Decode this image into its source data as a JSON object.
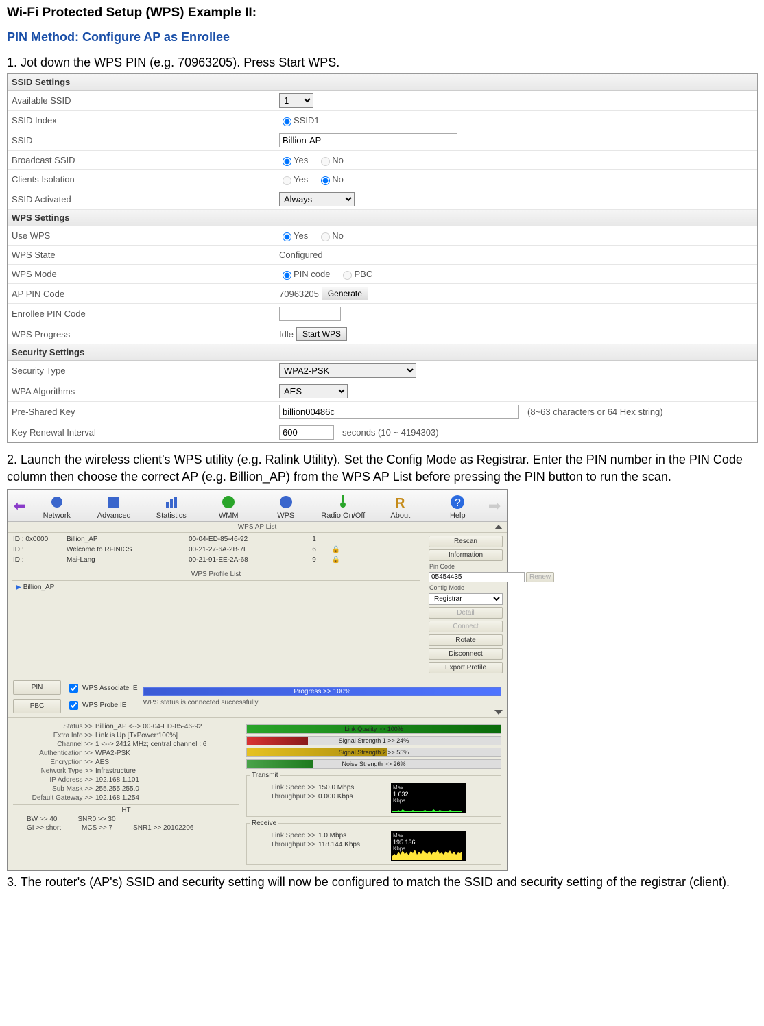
{
  "doc": {
    "title": "Wi-Fi Protected Setup (WPS) Example II:",
    "subtitle": "PIN Method: Configure AP as Enrollee",
    "step1": "1.  Jot down the WPS PIN (e.g. 70963205). Press Start WPS.",
    "step2": "2. Launch the wireless client's WPS utility (e.g. Ralink Utility). Set the Config Mode as Registrar. Enter the PIN number in the PIN Code column then choose the correct AP (e.g. Billion_AP) from the WPS AP List before pressing the PIN button to run the scan.",
    "step3": "3. The router's (AP's) SSID and security setting will now be configured to match the SSID and security setting of the registrar (client)."
  },
  "router": {
    "sec1": "SSID Settings",
    "rows1": {
      "available_ssid": {
        "label": "Available SSID",
        "value": "1"
      },
      "ssid_index": {
        "label": "SSID Index",
        "value": "SSID1"
      },
      "ssid": {
        "label": "SSID",
        "value": "Billion-AP"
      },
      "broadcast": {
        "label": "Broadcast SSID",
        "yes": "Yes",
        "no": "No",
        "sel": "yes"
      },
      "isolation": {
        "label": "Clients Isolation",
        "yes": "Yes",
        "no": "No",
        "sel": "no"
      },
      "activated": {
        "label": "SSID Activated",
        "value": "Always"
      }
    },
    "sec2": "WPS Settings",
    "rows2": {
      "use_wps": {
        "label": "Use WPS",
        "yes": "Yes",
        "no": "No",
        "sel": "yes"
      },
      "state": {
        "label": "WPS State",
        "value": "Configured"
      },
      "mode": {
        "label": "WPS Mode",
        "a": "PIN code",
        "b": "PBC",
        "sel": "a"
      },
      "ap_pin": {
        "label": "AP PIN Code",
        "value": "70963205",
        "btn": "Generate"
      },
      "enrollee_pin": {
        "label": "Enrollee PIN Code",
        "value": ""
      },
      "progress": {
        "label": "WPS Progress",
        "value": "Idle",
        "btn": "Start WPS"
      }
    },
    "sec3": "Security Settings",
    "rows3": {
      "sec_type": {
        "label": "Security Type",
        "value": "WPA2-PSK"
      },
      "alg": {
        "label": "WPA Algorithms",
        "value": "AES"
      },
      "psk": {
        "label": "Pre-Shared Key",
        "value": "billion00486c",
        "hint": "(8~63 characters or 64 Hex string)"
      },
      "renew": {
        "label": "Key Renewal Interval",
        "value": "600",
        "hint": "seconds   (10 ~ 4194303)"
      }
    }
  },
  "ralink": {
    "toolbar": [
      "Network",
      "Advanced",
      "Statistics",
      "WMM",
      "WPS",
      "Radio On/Off",
      "About",
      "Help"
    ],
    "list_title": "WPS AP List",
    "ap_list": [
      {
        "id": "ID : 0x0000",
        "ssid": "Billion_AP",
        "bssid": "00-04-ED-85-46-92",
        "ch": "1",
        "lock": ""
      },
      {
        "id": "ID :",
        "ssid": "Welcome to RFINICS",
        "bssid": "00-21-27-6A-2B-7E",
        "ch": "6",
        "lock": "🔒"
      },
      {
        "id": "ID :",
        "ssid": "Mai-Lang",
        "bssid": "00-21-91-EE-2A-68",
        "ch": "9",
        "lock": "🔒"
      }
    ],
    "profile_title": "WPS Profile List",
    "profile_sel": "Billion_AP",
    "side": {
      "rescan": "Rescan",
      "info": "Information",
      "pin_label": "Pin Code",
      "pin_value": "05454435",
      "mode_label": "Config Mode",
      "mode_value": "Registrar",
      "detail": "Detail",
      "connect": "Connect",
      "rotate": "Rotate",
      "disconnect": "Disconnect",
      "export": "Export Profile"
    },
    "mid": {
      "pin": "PIN",
      "pbc": "PBC",
      "assoc": "WPS Associate IE",
      "probe": "WPS Probe IE",
      "progress": "Progress >> 100%",
      "status": "WPS status is connected successfully"
    },
    "info": {
      "status_k": "Status >>",
      "status_v": "Billion_AP  <--> 00-04-ED-85-46-92",
      "extra_k": "Extra Info >>",
      "extra_v": "Link is Up [TxPower:100%]",
      "chan_k": "Channel >>",
      "chan_v": "1 <--> 2412 MHz; central channel : 6",
      "auth_k": "Authentication >>",
      "auth_v": "WPA2-PSK",
      "enc_k": "Encryption >>",
      "enc_v": "AES",
      "net_k": "Network Type >>",
      "net_v": "Infrastructure",
      "ip_k": "IP Address >>",
      "ip_v": "192.168.1.101",
      "mask_k": "Sub Mask >>",
      "mask_v": "255.255.255.0",
      "gw_k": "Default Gateway >>",
      "gw_v": "192.168.1.254",
      "ht": "HT",
      "bw": "BW >>  40",
      "snr0": "SNR0 >> 30",
      "gi": "GI >> short",
      "mcs": "MCS >> 7",
      "snr1": "SNR1 >> 20102206"
    },
    "bars": {
      "link": {
        "label": "Link Quality >> 100%",
        "pct": 100,
        "c1": "#2aa52a",
        "c2": "#0a6b0a"
      },
      "sig": {
        "label": "Signal Strength 1 >> 24%",
        "pct": 24,
        "c1": "#d93333",
        "c2": "#8a1a1a"
      },
      "sig2": {
        "label": "Signal Strength 2 >> 55%",
        "pct": 55,
        "c1": "#e6c222",
        "c2": "#a98a0c"
      },
      "noise": {
        "label": "Noise Strength >> 26%",
        "pct": 26,
        "c1": "#4aa34a",
        "c2": "#1e7a1e"
      }
    },
    "tx": {
      "legend": "Transmit",
      "ls_k": "Link Speed >>",
      "ls_v": "150.0 Mbps",
      "tp_k": "Throughput >>",
      "tp_v": "0.000 Kbps",
      "max": "Max",
      "val": "1.632",
      "unit": "Kbps",
      "spark_color": "#39ff39"
    },
    "rx": {
      "legend": "Receive",
      "ls_k": "Link Speed >>",
      "ls_v": "1.0 Mbps",
      "tp_k": "Throughput >>",
      "tp_v": "118.144 Kbps",
      "max": "Max",
      "val": "195.136",
      "unit": "Kbps",
      "spark_color": "#ffe63b"
    }
  }
}
